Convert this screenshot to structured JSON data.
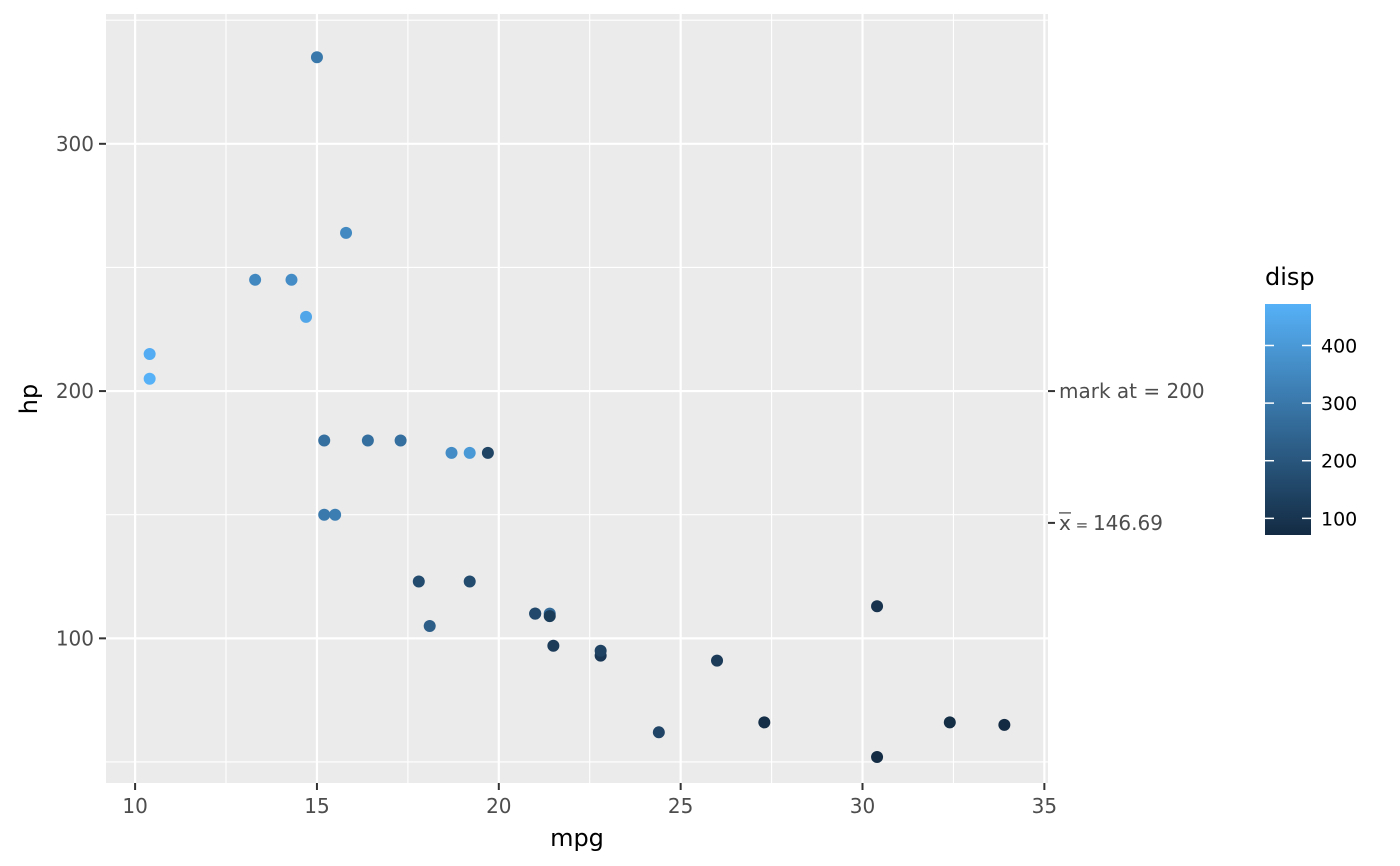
{
  "chart_data": {
    "type": "scatter",
    "xlabel": "mpg",
    "ylabel": "hp",
    "xlim": [
      9.2,
      35.1
    ],
    "ylim": [
      41.5,
      352.5
    ],
    "x_ticks": [
      10,
      15,
      20,
      25,
      30,
      35
    ],
    "y_ticks": [
      100,
      200,
      300
    ],
    "x_tick_labels": [
      "10",
      "15",
      "20",
      "25",
      "30",
      "35"
    ],
    "y_tick_labels": [
      "100",
      "200",
      "300"
    ],
    "grid": true,
    "background": "#ebebeb",
    "color_by": "disp",
    "color_scale": {
      "title": "disp",
      "domain": [
        71.1,
        472
      ],
      "low_color": "#132b43",
      "high_color": "#56b1f7",
      "breaks": [
        100,
        200,
        300,
        400
      ],
      "break_labels": [
        "100",
        "200",
        "300",
        "400"
      ]
    },
    "legend_position": "right",
    "secondary_axis_marks": [
      {
        "value": 200,
        "label": "mark at = 200"
      },
      {
        "value": 146.69,
        "label_prefix": "x",
        "label_sep": " = ",
        "label_value": "146.69"
      }
    ],
    "points": [
      {
        "x": 21.0,
        "y": 110,
        "disp": 160
      },
      {
        "x": 21.0,
        "y": 110,
        "disp": 160
      },
      {
        "x": 22.8,
        "y": 93,
        "disp": 108
      },
      {
        "x": 21.4,
        "y": 110,
        "disp": 258
      },
      {
        "x": 18.7,
        "y": 175,
        "disp": 360
      },
      {
        "x": 18.1,
        "y": 105,
        "disp": 225
      },
      {
        "x": 14.3,
        "y": 245,
        "disp": 360
      },
      {
        "x": 24.4,
        "y": 62,
        "disp": 146.7
      },
      {
        "x": 22.8,
        "y": 95,
        "disp": 140.8
      },
      {
        "x": 19.2,
        "y": 123,
        "disp": 167.6
      },
      {
        "x": 17.8,
        "y": 123,
        "disp": 167.6
      },
      {
        "x": 16.4,
        "y": 180,
        "disp": 275.8
      },
      {
        "x": 17.3,
        "y": 180,
        "disp": 275.8
      },
      {
        "x": 15.2,
        "y": 180,
        "disp": 275.8
      },
      {
        "x": 10.4,
        "y": 205,
        "disp": 472
      },
      {
        "x": 10.4,
        "y": 215,
        "disp": 460
      },
      {
        "x": 14.7,
        "y": 230,
        "disp": 440
      },
      {
        "x": 32.4,
        "y": 66,
        "disp": 78.7
      },
      {
        "x": 30.4,
        "y": 52,
        "disp": 75.7
      },
      {
        "x": 33.9,
        "y": 65,
        "disp": 71.1
      },
      {
        "x": 21.5,
        "y": 97,
        "disp": 120.1
      },
      {
        "x": 15.5,
        "y": 150,
        "disp": 318
      },
      {
        "x": 15.2,
        "y": 150,
        "disp": 304
      },
      {
        "x": 13.3,
        "y": 245,
        "disp": 350
      },
      {
        "x": 19.2,
        "y": 175,
        "disp": 400
      },
      {
        "x": 27.3,
        "y": 66,
        "disp": 79
      },
      {
        "x": 26.0,
        "y": 91,
        "disp": 120.3
      },
      {
        "x": 30.4,
        "y": 113,
        "disp": 95.1
      },
      {
        "x": 15.8,
        "y": 264,
        "disp": 351
      },
      {
        "x": 19.7,
        "y": 175,
        "disp": 145
      },
      {
        "x": 15.0,
        "y": 335,
        "disp": 301
      },
      {
        "x": 21.4,
        "y": 109,
        "disp": 121
      }
    ]
  }
}
